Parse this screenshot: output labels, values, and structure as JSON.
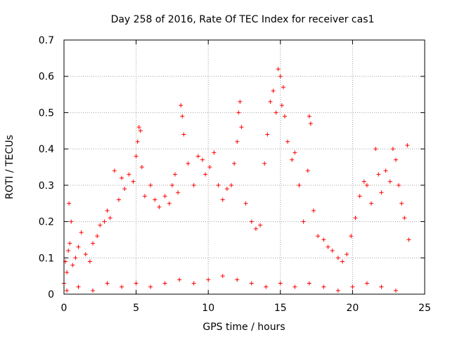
{
  "chart_data": {
    "type": "scatter",
    "title": "Day 258 of 2016, Rate Of TEC Index for receiver cas1",
    "xlabel": "GPS time / hours",
    "ylabel": "ROTI / TECUs",
    "xlim": [
      0,
      25
    ],
    "ylim": [
      0,
      0.7
    ],
    "xticks": [
      0,
      5,
      10,
      15,
      20,
      25
    ],
    "yticks": [
      0,
      0.1,
      0.2,
      0.3,
      0.4,
      0.5,
      0.6,
      0.7
    ],
    "xtick_labels": [
      "0",
      "5",
      "10",
      "15",
      "20",
      "25"
    ],
    "ytick_labels": [
      "0",
      "0.1",
      "0.2",
      "0.3",
      "0.4",
      "0.5",
      "0.6",
      "0.7"
    ],
    "grid": true,
    "marker": "+",
    "color": "#ff0000",
    "series": [
      {
        "name": "cas1",
        "points": [
          [
            0.0,
            0.03
          ],
          [
            0.1,
            0.09
          ],
          [
            0.2,
            0.06
          ],
          [
            0.3,
            0.12
          ],
          [
            0.35,
            0.25
          ],
          [
            0.4,
            0.14
          ],
          [
            0.5,
            0.2
          ],
          [
            0.6,
            0.08
          ],
          [
            0.8,
            0.1
          ],
          [
            1.0,
            0.13
          ],
          [
            1.2,
            0.17
          ],
          [
            1.5,
            0.11
          ],
          [
            1.8,
            0.09
          ],
          [
            2.0,
            0.14
          ],
          [
            2.3,
            0.16
          ],
          [
            2.5,
            0.19
          ],
          [
            2.8,
            0.2
          ],
          [
            3.0,
            0.23
          ],
          [
            3.2,
            0.21
          ],
          [
            3.5,
            0.34
          ],
          [
            3.8,
            0.26
          ],
          [
            4.0,
            0.32
          ],
          [
            4.2,
            0.29
          ],
          [
            4.5,
            0.33
          ],
          [
            4.8,
            0.31
          ],
          [
            5.0,
            0.38
          ],
          [
            5.1,
            0.42
          ],
          [
            5.2,
            0.46
          ],
          [
            5.3,
            0.45
          ],
          [
            5.4,
            0.35
          ],
          [
            5.6,
            0.27
          ],
          [
            6.0,
            0.3
          ],
          [
            6.3,
            0.26
          ],
          [
            6.6,
            0.24
          ],
          [
            7.0,
            0.27
          ],
          [
            7.3,
            0.25
          ],
          [
            7.5,
            0.3
          ],
          [
            7.7,
            0.33
          ],
          [
            7.9,
            0.28
          ],
          [
            8.1,
            0.52
          ],
          [
            8.2,
            0.49
          ],
          [
            8.3,
            0.44
          ],
          [
            8.6,
            0.36
          ],
          [
            9.0,
            0.3
          ],
          [
            9.3,
            0.38
          ],
          [
            9.6,
            0.37
          ],
          [
            9.8,
            0.33
          ],
          [
            10.1,
            0.35
          ],
          [
            10.4,
            0.39
          ],
          [
            10.7,
            0.3
          ],
          [
            11.0,
            0.26
          ],
          [
            11.3,
            0.29
          ],
          [
            11.6,
            0.3
          ],
          [
            11.8,
            0.36
          ],
          [
            12.0,
            0.42
          ],
          [
            12.1,
            0.5
          ],
          [
            12.2,
            0.53
          ],
          [
            12.3,
            0.46
          ],
          [
            12.6,
            0.25
          ],
          [
            13.0,
            0.2
          ],
          [
            13.3,
            0.18
          ],
          [
            13.6,
            0.19
          ],
          [
            13.9,
            0.36
          ],
          [
            14.1,
            0.44
          ],
          [
            14.3,
            0.53
          ],
          [
            14.5,
            0.56
          ],
          [
            14.7,
            0.5
          ],
          [
            14.85,
            0.62
          ],
          [
            15.0,
            0.6
          ],
          [
            15.1,
            0.52
          ],
          [
            15.2,
            0.57
          ],
          [
            15.3,
            0.49
          ],
          [
            15.5,
            0.42
          ],
          [
            15.8,
            0.37
          ],
          [
            16.0,
            0.39
          ],
          [
            16.3,
            0.3
          ],
          [
            16.6,
            0.2
          ],
          [
            16.9,
            0.34
          ],
          [
            17.0,
            0.49
          ],
          [
            17.1,
            0.47
          ],
          [
            17.3,
            0.23
          ],
          [
            17.6,
            0.16
          ],
          [
            18.0,
            0.15
          ],
          [
            18.3,
            0.13
          ],
          [
            18.6,
            0.12
          ],
          [
            19.0,
            0.1
          ],
          [
            19.3,
            0.09
          ],
          [
            19.6,
            0.11
          ],
          [
            19.9,
            0.16
          ],
          [
            20.2,
            0.21
          ],
          [
            20.5,
            0.27
          ],
          [
            20.8,
            0.31
          ],
          [
            21.0,
            0.3
          ],
          [
            21.3,
            0.25
          ],
          [
            21.6,
            0.4
          ],
          [
            21.8,
            0.33
          ],
          [
            22.0,
            0.28
          ],
          [
            22.3,
            0.34
          ],
          [
            22.6,
            0.31
          ],
          [
            22.8,
            0.4
          ],
          [
            23.0,
            0.37
          ],
          [
            23.2,
            0.3
          ],
          [
            23.4,
            0.25
          ],
          [
            23.6,
            0.21
          ],
          [
            23.8,
            0.41
          ],
          [
            23.9,
            0.15
          ],
          [
            0.2,
            0.01
          ],
          [
            1.0,
            0.02
          ],
          [
            2.0,
            0.01
          ],
          [
            3.0,
            0.03
          ],
          [
            4.0,
            0.02
          ],
          [
            5.0,
            0.03
          ],
          [
            6.0,
            0.02
          ],
          [
            7.0,
            0.03
          ],
          [
            8.0,
            0.04
          ],
          [
            9.0,
            0.03
          ],
          [
            10.0,
            0.04
          ],
          [
            11.0,
            0.05
          ],
          [
            12.0,
            0.04
          ],
          [
            13.0,
            0.03
          ],
          [
            14.0,
            0.02
          ],
          [
            15.0,
            0.03
          ],
          [
            16.0,
            0.02
          ],
          [
            17.0,
            0.03
          ],
          [
            18.0,
            0.02
          ],
          [
            19.0,
            0.01
          ],
          [
            20.0,
            0.02
          ],
          [
            21.0,
            0.03
          ],
          [
            22.0,
            0.02
          ],
          [
            23.0,
            0.01
          ]
        ]
      }
    ]
  }
}
